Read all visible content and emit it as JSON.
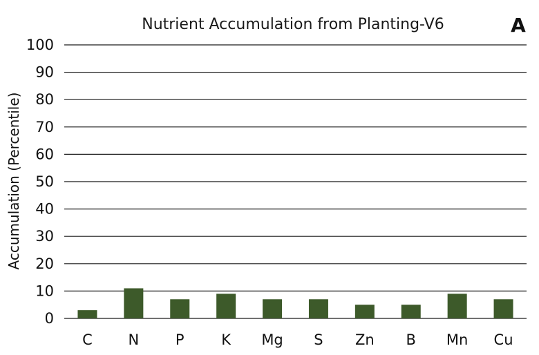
{
  "chart_data": {
    "type": "bar",
    "title": "Nutrient Accumulation from Planting-V6",
    "panel_label": "A",
    "ylabel": "Accumulation (Percentile)",
    "xlabel": "",
    "ylim": [
      0,
      100
    ],
    "yticks": [
      0,
      10,
      20,
      30,
      40,
      50,
      60,
      70,
      80,
      90,
      100
    ],
    "grid": true,
    "categories": [
      "C",
      "N",
      "P",
      "K",
      "Mg",
      "S",
      "Zn",
      "B",
      "Mn",
      "Cu"
    ],
    "values": [
      3,
      11,
      7,
      9,
      7,
      7,
      5,
      5,
      9,
      7
    ],
    "bar_color": "#3d5a2a"
  }
}
